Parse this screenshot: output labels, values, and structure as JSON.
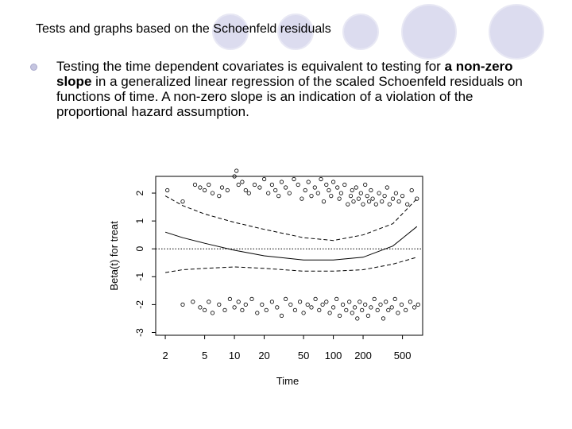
{
  "slide": {
    "title": "Tests and graphs based on the Schoenfeld residuals",
    "bullet": {
      "part1": "Testing the time dependent covariates is equivalent to testing for ",
      "bold1": "a non-zero slope",
      "part2": " in a generalized linear regression of the scaled Schoenfeld residuals on functions of time.  A non-zero slope is an indication of a violation of the proportional hazard assumption."
    },
    "colors": {
      "circle_fill": "#d9d9ee",
      "circle_stroke": "#e6e6f3",
      "bullet": "#c5c5e0"
    }
  },
  "chart_data": {
    "type": "scatter",
    "xlabel": "Time",
    "ylabel": "Beta(t) for treat",
    "x_scale": "log",
    "x_ticks": [
      "2",
      "5",
      "10",
      "20",
      "50",
      "100",
      "200",
      "500"
    ],
    "y_ticks": [
      "-3",
      "-2",
      "-1",
      "0",
      "1",
      "2"
    ],
    "xlim": [
      1.6,
      800
    ],
    "ylim": [
      -3.1,
      2.6
    ],
    "reference_line_y": 0,
    "smooth": {
      "x": [
        2,
        3,
        5,
        10,
        20,
        50,
        100,
        200,
        400,
        700
      ],
      "fit": [
        0.6,
        0.4,
        0.2,
        -0.05,
        -0.25,
        -0.4,
        -0.4,
        -0.3,
        0.1,
        0.8
      ],
      "upper": [
        1.9,
        1.55,
        1.25,
        0.95,
        0.7,
        0.4,
        0.3,
        0.5,
        0.9,
        1.8
      ],
      "lower": [
        -0.85,
        -0.75,
        -0.7,
        -0.65,
        -0.7,
        -0.8,
        -0.8,
        -0.75,
        -0.55,
        -0.3
      ]
    },
    "points_upper": [
      [
        2.1,
        2.1
      ],
      [
        3.0,
        1.7
      ],
      [
        4.0,
        2.3
      ],
      [
        4.5,
        2.2
      ],
      [
        5.0,
        2.1
      ],
      [
        5.5,
        2.3
      ],
      [
        6.0,
        2.0
      ],
      [
        7.0,
        1.9
      ],
      [
        7.5,
        2.2
      ],
      [
        8.5,
        2.1
      ],
      [
        10,
        2.6
      ],
      [
        10.5,
        2.8
      ],
      [
        11,
        2.3
      ],
      [
        12,
        2.4
      ],
      [
        13,
        2.1
      ],
      [
        14,
        2.0
      ],
      [
        16,
        2.3
      ],
      [
        18,
        2.2
      ],
      [
        20,
        2.5
      ],
      [
        22,
        2.0
      ],
      [
        24,
        2.3
      ],
      [
        26,
        2.1
      ],
      [
        28,
        1.9
      ],
      [
        30,
        2.4
      ],
      [
        33,
        2.2
      ],
      [
        36,
        2.0
      ],
      [
        40,
        2.5
      ],
      [
        44,
        2.3
      ],
      [
        48,
        1.8
      ],
      [
        52,
        2.1
      ],
      [
        56,
        2.4
      ],
      [
        60,
        1.9
      ],
      [
        65,
        2.2
      ],
      [
        70,
        2.0
      ],
      [
        75,
        2.5
      ],
      [
        80,
        1.7
      ],
      [
        85,
        2.3
      ],
      [
        90,
        2.1
      ],
      [
        95,
        1.9
      ],
      [
        100,
        2.4
      ],
      [
        110,
        2.2
      ],
      [
        115,
        1.8
      ],
      [
        120,
        2.0
      ],
      [
        130,
        2.3
      ],
      [
        140,
        1.6
      ],
      [
        150,
        1.9
      ],
      [
        155,
        2.1
      ],
      [
        160,
        1.7
      ],
      [
        170,
        2.2
      ],
      [
        180,
        1.8
      ],
      [
        190,
        2.0
      ],
      [
        200,
        1.6
      ],
      [
        210,
        2.3
      ],
      [
        220,
        1.9
      ],
      [
        230,
        1.7
      ],
      [
        240,
        2.1
      ],
      [
        250,
        1.8
      ],
      [
        270,
        1.6
      ],
      [
        290,
        2.0
      ],
      [
        310,
        1.7
      ],
      [
        330,
        1.9
      ],
      [
        350,
        2.2
      ],
      [
        370,
        1.6
      ],
      [
        400,
        1.8
      ],
      [
        430,
        2.0
      ],
      [
        460,
        1.7
      ],
      [
        500,
        1.9
      ],
      [
        560,
        1.6
      ],
      [
        620,
        2.1
      ],
      [
        700,
        1.8
      ]
    ],
    "points_lower": [
      [
        3.0,
        -2.0
      ],
      [
        3.8,
        -1.9
      ],
      [
        4.5,
        -2.1
      ],
      [
        5.0,
        -2.2
      ],
      [
        5.5,
        -1.9
      ],
      [
        6.0,
        -2.3
      ],
      [
        7.0,
        -2.0
      ],
      [
        8.0,
        -2.2
      ],
      [
        9.0,
        -1.8
      ],
      [
        10,
        -2.1
      ],
      [
        11,
        -1.9
      ],
      [
        12,
        -2.2
      ],
      [
        13,
        -2.0
      ],
      [
        15,
        -1.8
      ],
      [
        17,
        -2.3
      ],
      [
        19,
        -2.0
      ],
      [
        21,
        -2.2
      ],
      [
        24,
        -1.9
      ],
      [
        27,
        -2.1
      ],
      [
        30,
        -2.4
      ],
      [
        33,
        -1.8
      ],
      [
        37,
        -2.0
      ],
      [
        41,
        -2.2
      ],
      [
        46,
        -1.9
      ],
      [
        50,
        -2.3
      ],
      [
        55,
        -2.0
      ],
      [
        60,
        -2.1
      ],
      [
        66,
        -1.8
      ],
      [
        72,
        -2.2
      ],
      [
        78,
        -2.0
      ],
      [
        85,
        -1.9
      ],
      [
        92,
        -2.3
      ],
      [
        100,
        -2.1
      ],
      [
        108,
        -1.8
      ],
      [
        116,
        -2.4
      ],
      [
        125,
        -2.0
      ],
      [
        135,
        -2.2
      ],
      [
        145,
        -1.9
      ],
      [
        155,
        -2.3
      ],
      [
        165,
        -2.1
      ],
      [
        175,
        -2.5
      ],
      [
        185,
        -1.9
      ],
      [
        195,
        -2.2
      ],
      [
        210,
        -2.0
      ],
      [
        225,
        -2.4
      ],
      [
        240,
        -2.1
      ],
      [
        260,
        -1.8
      ],
      [
        280,
        -2.2
      ],
      [
        300,
        -2.0
      ],
      [
        320,
        -2.5
      ],
      [
        340,
        -1.9
      ],
      [
        360,
        -2.2
      ],
      [
        390,
        -2.1
      ],
      [
        420,
        -1.8
      ],
      [
        450,
        -2.3
      ],
      [
        490,
        -2.0
      ],
      [
        540,
        -2.2
      ],
      [
        600,
        -1.9
      ],
      [
        660,
        -2.1
      ],
      [
        720,
        -2.0
      ]
    ]
  }
}
